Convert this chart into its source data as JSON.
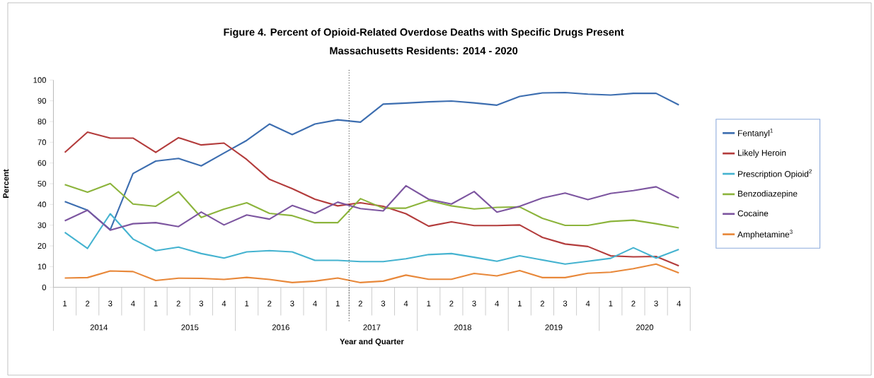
{
  "chart_data": {
    "type": "line",
    "title": "Figure 4. Percent of Opioid-Related Overdose Deaths with Specific Drugs Present",
    "subtitle": "Massachusetts Residents: 2014 - 2020",
    "xlabel": "Year and Quarter",
    "ylabel": "Percent",
    "categories": [
      "1",
      "2",
      "3",
      "4",
      "1",
      "2",
      "3",
      "4",
      "1",
      "2",
      "3",
      "4",
      "1",
      "2",
      "3",
      "4",
      "1",
      "2",
      "3",
      "4",
      "1",
      "2",
      "3",
      "4",
      "1",
      "2",
      "3",
      "4"
    ],
    "annotations": [
      "2014",
      "2015",
      "2016",
      "2017",
      "2018",
      "2019",
      "2020"
    ],
    "ylim": [
      0,
      100
    ],
    "yticks": [
      0,
      10,
      20,
      30,
      40,
      50,
      60,
      70,
      80,
      90,
      100
    ],
    "grid": false,
    "legend": "right",
    "line_style": "solid",
    "series": [
      {
        "name": "Fentanyl$^{1}$",
        "color": "#3d6eb0",
        "values": [
          41.4,
          37.2,
          27.8,
          54.9,
          60.9,
          62.2,
          58.6,
          64.8,
          70.9,
          78.8,
          73.7,
          78.8,
          80.8,
          79.7,
          88.4,
          88.9,
          89.5,
          89.9,
          89.0,
          87.9,
          92.1,
          93.8,
          94.0,
          93.2,
          92.8,
          93.6,
          93.6,
          88.0
        ]
      },
      {
        "name": "Likely Heroin",
        "color": "#b33c3c",
        "values": [
          65.1,
          74.9,
          72.0,
          72.0,
          65.1,
          72.2,
          68.7,
          69.6,
          61.7,
          52.1,
          47.6,
          42.5,
          39.3,
          40.8,
          39.1,
          35.5,
          29.5,
          31.6,
          29.8,
          29.8,
          30.1,
          24.1,
          20.9,
          19.7,
          15.2,
          14.7,
          14.9,
          10.4
        ]
      },
      {
        "name": "Prescription Opioid$^{2}$",
        "color": "#45b3d0",
        "values": [
          26.5,
          18.8,
          35.5,
          23.3,
          17.7,
          19.4,
          16.3,
          14.1,
          17.1,
          17.7,
          17.1,
          13.0,
          13.0,
          12.4,
          12.4,
          13.8,
          15.8,
          16.3,
          14.5,
          12.6,
          15.2,
          13.2,
          11.2,
          12.6,
          14.0,
          19.1,
          14.1,
          18.3
        ]
      },
      {
        "name": "Benzodiazepine",
        "color": "#8cb43c",
        "values": [
          49.6,
          45.9,
          50.1,
          40.2,
          39.1,
          46.1,
          33.7,
          37.7,
          40.8,
          35.7,
          34.6,
          31.2,
          31.2,
          42.8,
          38.2,
          38.2,
          41.9,
          39.3,
          37.8,
          38.6,
          38.8,
          33.3,
          29.9,
          29.9,
          31.8,
          32.4,
          30.7,
          28.7
        ]
      },
      {
        "name": "Cocaine",
        "color": "#7d56a0",
        "values": [
          32.1,
          37.2,
          27.6,
          30.7,
          31.2,
          29.3,
          36.3,
          30.1,
          34.9,
          32.9,
          39.5,
          35.7,
          41.1,
          38.0,
          36.9,
          49.0,
          42.5,
          40.2,
          46.2,
          36.3,
          39.1,
          43.1,
          45.5,
          42.3,
          45.3,
          46.7,
          48.5,
          43.1
        ]
      },
      {
        "name": "Amphetamine$^{3}$",
        "color": "#e8883a",
        "values": [
          4.5,
          4.7,
          7.9,
          7.6,
          3.3,
          4.4,
          4.3,
          3.8,
          4.8,
          3.8,
          2.3,
          3.0,
          4.5,
          2.3,
          3.0,
          5.9,
          3.9,
          3.9,
          6.7,
          5.5,
          8.1,
          4.7,
          4.7,
          6.8,
          7.3,
          9.0,
          11.2,
          7.0
        ]
      }
    ]
  }
}
